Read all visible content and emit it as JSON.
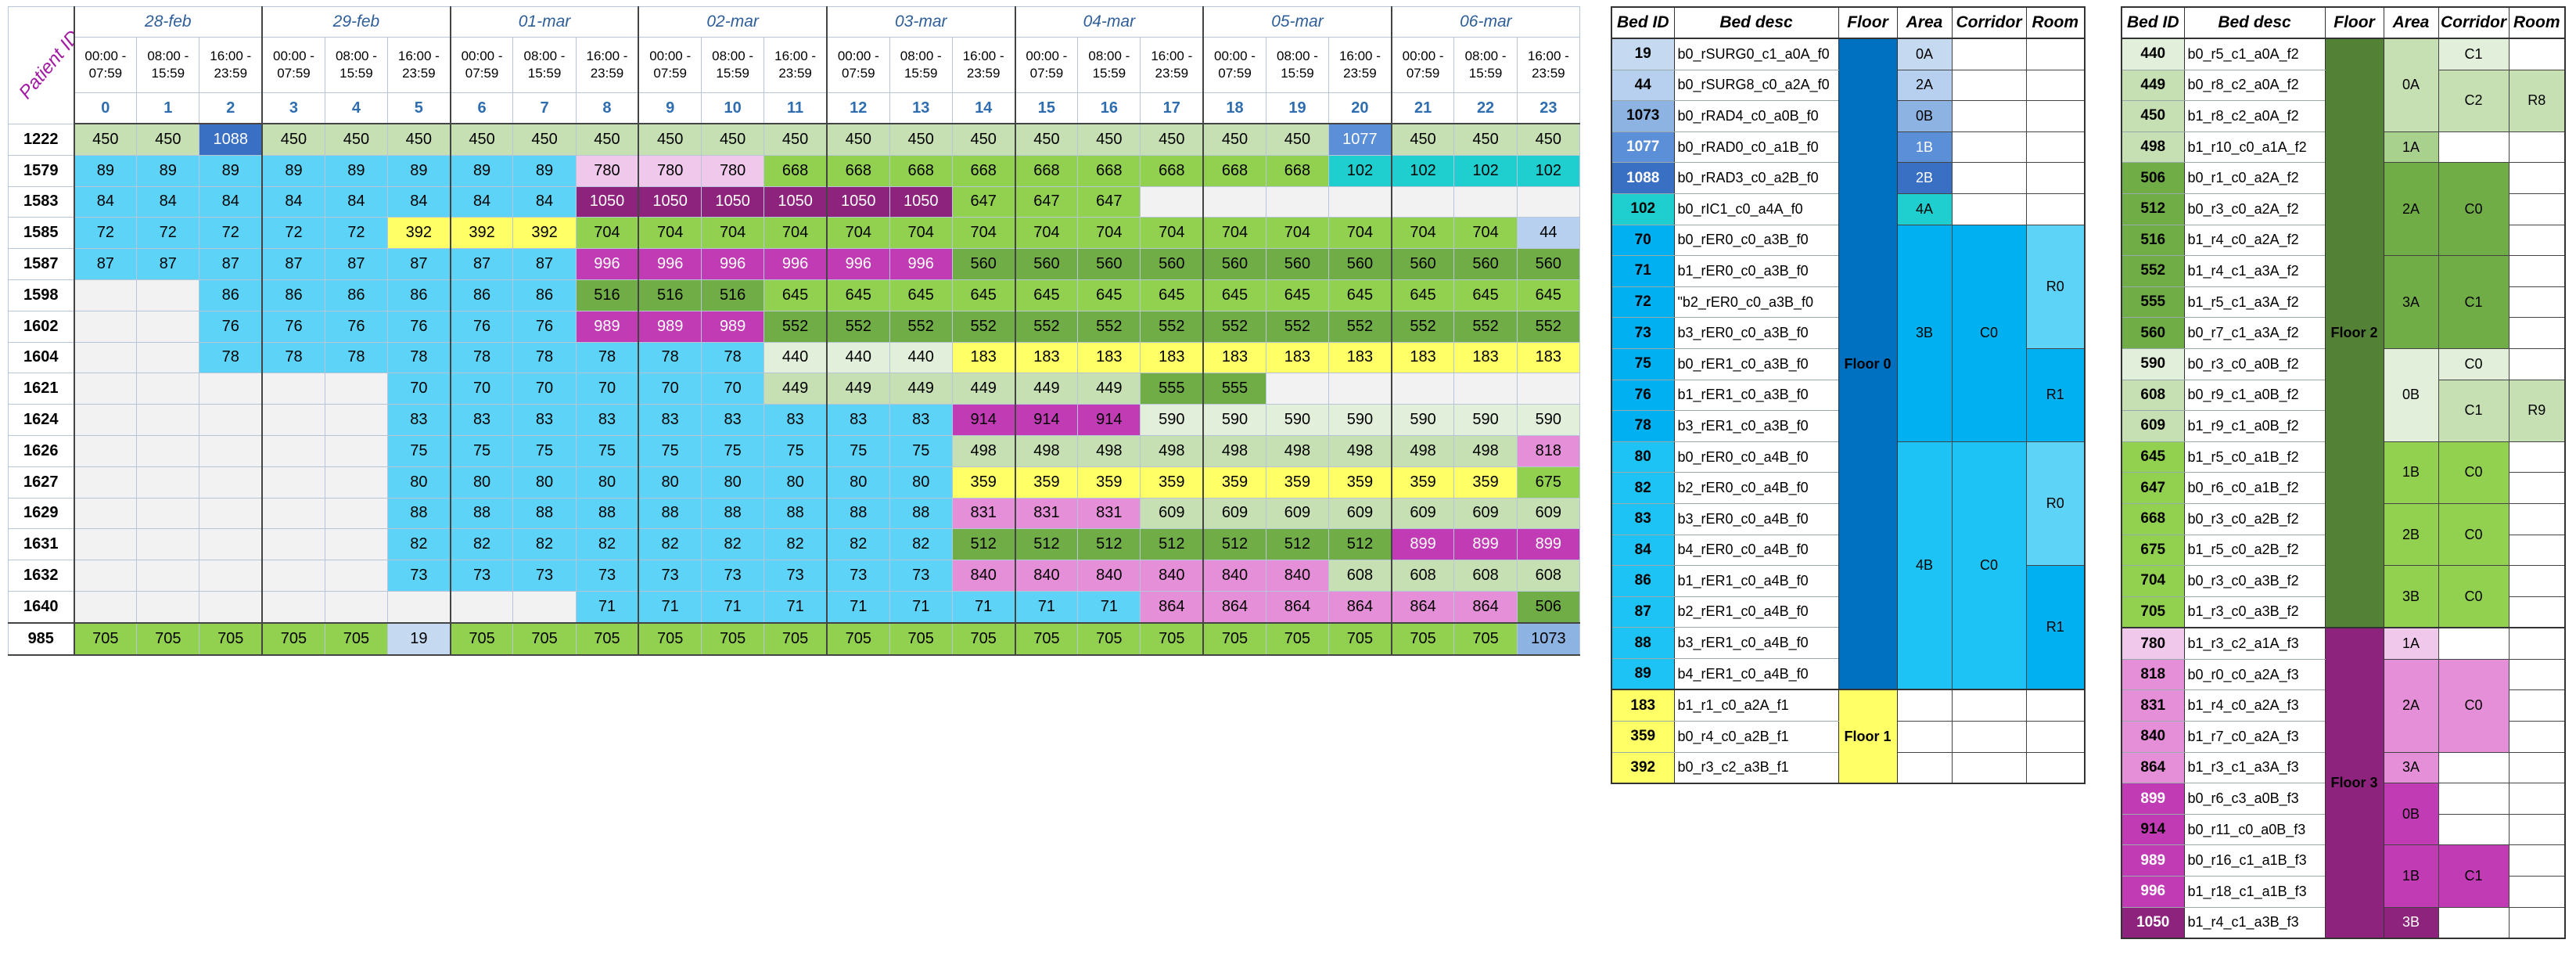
{
  "schedule": {
    "patient_id_header": "Patient ID",
    "days": [
      "28-feb",
      "29-feb",
      "01-mar",
      "02-mar",
      "03-mar",
      "04-mar",
      "05-mar",
      "06-mar"
    ],
    "slots": [
      "00:00 - 07:59",
      "08:00 - 15:59",
      "16:00 - 23:59"
    ],
    "slot_numbers": [
      "0",
      "1",
      "2",
      "3",
      "4",
      "5",
      "6",
      "7",
      "8",
      "9",
      "10",
      "11",
      "12",
      "13",
      "14",
      "15",
      "16",
      "17",
      "18",
      "19",
      "20",
      "21",
      "22",
      "23"
    ],
    "rows": [
      {
        "pid": "1222",
        "cells": [
          "450",
          "450",
          "1088",
          "450",
          "450",
          "450",
          "450",
          "450",
          "450",
          "450",
          "450",
          "450",
          "450",
          "450",
          "450",
          "450",
          "450",
          "450",
          "450",
          "450",
          "1077",
          "450",
          "450",
          "450"
        ]
      },
      {
        "pid": "1579",
        "cells": [
          "89",
          "89",
          "89",
          "89",
          "89",
          "89",
          "89",
          "89",
          "780",
          "780",
          "780",
          "668",
          "668",
          "668",
          "668",
          "668",
          "668",
          "668",
          "668",
          "668",
          "102",
          "102",
          "102",
          "102"
        ]
      },
      {
        "pid": "1583",
        "cells": [
          "84",
          "84",
          "84",
          "84",
          "84",
          "84",
          "84",
          "84",
          "1050",
          "1050",
          "1050",
          "1050",
          "1050",
          "1050",
          "647",
          "647",
          "647",
          "",
          "",
          "",
          "",
          "",
          "",
          ""
        ]
      },
      {
        "pid": "1585",
        "cells": [
          "72",
          "72",
          "72",
          "72",
          "72",
          "392",
          "392",
          "392",
          "704",
          "704",
          "704",
          "704",
          "704",
          "704",
          "704",
          "704",
          "704",
          "704",
          "704",
          "704",
          "704",
          "704",
          "704",
          "44"
        ]
      },
      {
        "pid": "1587",
        "cells": [
          "87",
          "87",
          "87",
          "87",
          "87",
          "87",
          "87",
          "87",
          "996",
          "996",
          "996",
          "996",
          "996",
          "996",
          "560",
          "560",
          "560",
          "560",
          "560",
          "560",
          "560",
          "560",
          "560",
          "560"
        ]
      },
      {
        "pid": "1598",
        "cells": [
          "",
          "",
          "86",
          "86",
          "86",
          "86",
          "86",
          "86",
          "516",
          "516",
          "516",
          "645",
          "645",
          "645",
          "645",
          "645",
          "645",
          "645",
          "645",
          "645",
          "645",
          "645",
          "645",
          "645"
        ]
      },
      {
        "pid": "1602",
        "cells": [
          "",
          "",
          "76",
          "76",
          "76",
          "76",
          "76",
          "76",
          "989",
          "989",
          "989",
          "552",
          "552",
          "552",
          "552",
          "552",
          "552",
          "552",
          "552",
          "552",
          "552",
          "552",
          "552",
          "552"
        ]
      },
      {
        "pid": "1604",
        "cells": [
          "",
          "",
          "78",
          "78",
          "78",
          "78",
          "78",
          "78",
          "78",
          "78",
          "78",
          "440",
          "440",
          "440",
          "183",
          "183",
          "183",
          "183",
          "183",
          "183",
          "183",
          "183",
          "183",
          "183"
        ]
      },
      {
        "pid": "1621",
        "cells": [
          "",
          "",
          "",
          "",
          "",
          "70",
          "70",
          "70",
          "70",
          "70",
          "70",
          "449",
          "449",
          "449",
          "449",
          "449",
          "449",
          "555",
          "555",
          "",
          "",
          "",
          "",
          ""
        ]
      },
      {
        "pid": "1624",
        "cells": [
          "",
          "",
          "",
          "",
          "",
          "83",
          "83",
          "83",
          "83",
          "83",
          "83",
          "83",
          "83",
          "83",
          "914",
          "914",
          "914",
          "590",
          "590",
          "590",
          "590",
          "590",
          "590",
          "590"
        ]
      },
      {
        "pid": "1626",
        "cells": [
          "",
          "",
          "",
          "",
          "",
          "75",
          "75",
          "75",
          "75",
          "75",
          "75",
          "75",
          "75",
          "75",
          "498",
          "498",
          "498",
          "498",
          "498",
          "498",
          "498",
          "498",
          "498",
          "818"
        ]
      },
      {
        "pid": "1627",
        "cells": [
          "",
          "",
          "",
          "",
          "",
          "80",
          "80",
          "80",
          "80",
          "80",
          "80",
          "80",
          "80",
          "80",
          "359",
          "359",
          "359",
          "359",
          "359",
          "359",
          "359",
          "359",
          "359",
          "675"
        ]
      },
      {
        "pid": "1629",
        "cells": [
          "",
          "",
          "",
          "",
          "",
          "88",
          "88",
          "88",
          "88",
          "88",
          "88",
          "88",
          "88",
          "88",
          "831",
          "831",
          "831",
          "609",
          "609",
          "609",
          "609",
          "609",
          "609",
          "609"
        ]
      },
      {
        "pid": "1631",
        "cells": [
          "",
          "",
          "",
          "",
          "",
          "82",
          "82",
          "82",
          "82",
          "82",
          "82",
          "82",
          "82",
          "82",
          "512",
          "512",
          "512",
          "512",
          "512",
          "512",
          "512",
          "899",
          "899",
          "899"
        ]
      },
      {
        "pid": "1632",
        "cells": [
          "",
          "",
          "",
          "",
          "",
          "73",
          "73",
          "73",
          "73",
          "73",
          "73",
          "73",
          "73",
          "73",
          "840",
          "840",
          "840",
          "840",
          "840",
          "840",
          "608",
          "608",
          "608",
          "608"
        ]
      },
      {
        "pid": "1640",
        "cells": [
          "",
          "",
          "",
          "",
          "",
          "",
          "",
          "",
          "71",
          "71",
          "71",
          "71",
          "71",
          "71",
          "71",
          "71",
          "71",
          "864",
          "864",
          "864",
          "864",
          "864",
          "864",
          "506"
        ]
      },
      {
        "pid": "985",
        "cells": [
          "705",
          "705",
          "705",
          "705",
          "705",
          "19",
          "705",
          "705",
          "705",
          "705",
          "705",
          "705",
          "705",
          "705",
          "705",
          "705",
          "705",
          "705",
          "705",
          "705",
          "705",
          "705",
          "705",
          "1073"
        ]
      }
    ]
  },
  "bed_headers": {
    "bed_id": "Bed ID",
    "bed_desc": "Bed desc",
    "floor": "Floor",
    "area": "Area",
    "corridor": "Corridor",
    "room": "Room"
  },
  "beds_left": [
    {
      "id": "19",
      "desc": "b0_rSURG0_c1_a0A_f0"
    },
    {
      "id": "44",
      "desc": "b0_rSURG8_c0_a2A_f0"
    },
    {
      "id": "1073",
      "desc": "b0_rRAD4_c0_a0B_f0"
    },
    {
      "id": "1077",
      "desc": "b0_rRAD0_c0_a1B_f0"
    },
    {
      "id": "1088",
      "desc": "b0_rRAD3_c0_a2B_f0"
    },
    {
      "id": "102",
      "desc": "b0_rIC1_c0_a4A_f0"
    },
    {
      "id": "70",
      "desc": "b0_rER0_c0_a3B_f0"
    },
    {
      "id": "71",
      "desc": "b1_rER0_c0_a3B_f0"
    },
    {
      "id": "72",
      "desc": "\"b2_rER0_c0_a3B_f0"
    },
    {
      "id": "73",
      "desc": "b3_rER0_c0_a3B_f0"
    },
    {
      "id": "75",
      "desc": "b0_rER1_c0_a3B_f0"
    },
    {
      "id": "76",
      "desc": "b1_rER1_c0_a3B_f0"
    },
    {
      "id": "78",
      "desc": "b3_rER1_c0_a3B_f0"
    },
    {
      "id": "80",
      "desc": "b0_rER0_c0_a4B_f0"
    },
    {
      "id": "82",
      "desc": "b2_rER0_c0_a4B_f0"
    },
    {
      "id": "83",
      "desc": "b3_rER0_c0_a4B_f0"
    },
    {
      "id": "84",
      "desc": "b4_rER0_c0_a4B_f0"
    },
    {
      "id": "86",
      "desc": "b1_rER1_c0_a4B_f0"
    },
    {
      "id": "87",
      "desc": "b2_rER1_c0_a4B_f0"
    },
    {
      "id": "88",
      "desc": "b3_rER1_c0_a4B_f0"
    },
    {
      "id": "89",
      "desc": "b4_rER1_c0_a4B_f0"
    },
    {
      "id": "183",
      "desc": "b1_r1_c0_a2A_f1"
    },
    {
      "id": "359",
      "desc": "b0_r4_c0_a2B_f1"
    },
    {
      "id": "392",
      "desc": "b0_r3_c2_a3B_f1"
    }
  ],
  "beds_left_groups": {
    "floor0": "Floor 0",
    "floor1": "Floor 1",
    "areas": [
      "0A",
      "2A",
      "0B",
      "1B",
      "2B",
      "4A",
      "3B",
      "4B"
    ],
    "corridors": [
      "C0",
      "C0"
    ],
    "rooms": [
      "R0",
      "R1",
      "R0",
      "R1"
    ]
  },
  "beds_right": [
    {
      "id": "440",
      "desc": "b0_r5_c1_a0A_f2"
    },
    {
      "id": "449",
      "desc": "b0_r8_c2_a0A_f2"
    },
    {
      "id": "450",
      "desc": "b1_r8_c2_a0A_f2"
    },
    {
      "id": "498",
      "desc": "b1_r10_c0_a1A_f2"
    },
    {
      "id": "506",
      "desc": "b0_r1_c0_a2A_f2"
    },
    {
      "id": "512",
      "desc": "b0_r3_c0_a2A_f2"
    },
    {
      "id": "516",
      "desc": "b1_r4_c0_a2A_f2"
    },
    {
      "id": "552",
      "desc": "b1_r4_c1_a3A_f2"
    },
    {
      "id": "555",
      "desc": "b1_r5_c1_a3A_f2"
    },
    {
      "id": "560",
      "desc": "b0_r7_c1_a3A_f2"
    },
    {
      "id": "590",
      "desc": "b0_r3_c0_a0B_f2"
    },
    {
      "id": "608",
      "desc": "b0_r9_c1_a0B_f2"
    },
    {
      "id": "609",
      "desc": "b1_r9_c1_a0B_f2"
    },
    {
      "id": "645",
      "desc": "b1_r5_c0_a1B_f2"
    },
    {
      "id": "647",
      "desc": "b0_r6_c0_a1B_f2"
    },
    {
      "id": "668",
      "desc": "b0_r3_c0_a2B_f2"
    },
    {
      "id": "675",
      "desc": "b1_r5_c0_a2B_f2"
    },
    {
      "id": "704",
      "desc": "b0_r3_c0_a3B_f2"
    },
    {
      "id": "705",
      "desc": "b1_r3_c0_a3B_f2"
    },
    {
      "id": "780",
      "desc": "b1_r3_c2_a1A_f3"
    },
    {
      "id": "818",
      "desc": "b0_r0_c0_a2A_f3"
    },
    {
      "id": "831",
      "desc": "b1_r4_c0_a2A_f3"
    },
    {
      "id": "840",
      "desc": "b1_r7_c0_a2A_f3"
    },
    {
      "id": "864",
      "desc": "b1_r3_c1_a3A_f3"
    },
    {
      "id": "899",
      "desc": "b0_r6_c3_a0B_f3"
    },
    {
      "id": "914",
      "desc": "b0_r11_c0_a0B_f3"
    },
    {
      "id": "989",
      "desc": "b0_r16_c1_a1B_f3"
    },
    {
      "id": "996",
      "desc": "b1_r18_c1_a1B_f3"
    },
    {
      "id": "1050",
      "desc": "b1_r4_c1_a3B_f3"
    }
  ],
  "beds_right_groups": {
    "floor2": "Floor 2",
    "floor3": "Floor 3",
    "areas": [
      "0A",
      "1A",
      "2A",
      "3A",
      "0B",
      "1B",
      "2B",
      "3B",
      "1A",
      "2A",
      "3A",
      "0B",
      "1B",
      "3B"
    ],
    "corridors": [
      "C1",
      "C2",
      "C0",
      "C1",
      "C0",
      "C1",
      "C0",
      "C0",
      "C0",
      "C0",
      "C1"
    ],
    "rooms": [
      "R8",
      "R9"
    ]
  },
  "colors": {
    "c19": "#c5d9f1",
    "c44": "#b7d0ef",
    "c1073": "#8db3e2",
    "c1077": "#5b8fd8",
    "c1088": "#3a70c4",
    "c102": "#1fcfcf",
    "er_a": "#00b0f0",
    "er_b": "#1ec3f5",
    "er_light": "#5dd3f8",
    "floor0": "#0070c0",
    "floor1": "#ffff66",
    "floor2": "#538135",
    "floor3": "#8e237d",
    "f1_bed": "#ffff66",
    "f2_light": "#c6e0b4",
    "f2_mid": "#92d050",
    "f2_dark": "#70ad47",
    "f3_light": "#f0c8ec",
    "f3_mid": "#e68fd9",
    "f3_dark": "#c13bb5",
    "f3_deep": "#8e237d",
    "empty": "#f2f2f2"
  }
}
